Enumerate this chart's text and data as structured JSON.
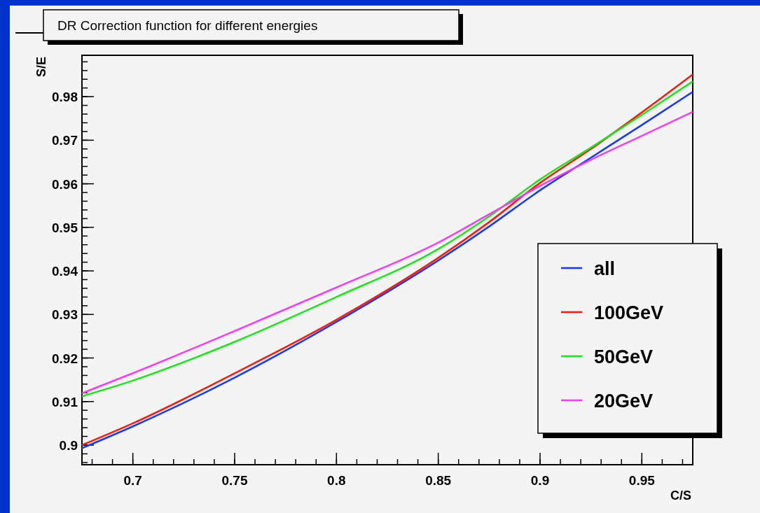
{
  "chart_data": {
    "type": "line",
    "title": "DR Correction function for different energies",
    "xlabel": "C/S",
    "ylabel": "S/E",
    "x": [
      0.675,
      0.7,
      0.75,
      0.8,
      0.85,
      0.875,
      0.9,
      0.925,
      0.95,
      0.975
    ],
    "series": [
      {
        "name": "all",
        "color": "#1a3cf0",
        "values": [
          0.8993,
          0.9043,
          0.9155,
          0.9283,
          0.9424,
          0.9502,
          0.9585,
          0.966,
          0.9735,
          0.9811
        ]
      },
      {
        "name": "100GeV",
        "color": "#f02010",
        "values": [
          0.9,
          0.905,
          0.9165,
          0.9288,
          0.943,
          0.9512,
          0.9602,
          0.968,
          0.9764,
          0.9851
        ]
      },
      {
        "name": "50GeV",
        "color": "#20e020",
        "values": [
          0.9112,
          0.9148,
          0.9237,
          0.934,
          0.945,
          0.9525,
          0.961,
          0.9683,
          0.9758,
          0.9835
        ]
      },
      {
        "name": "20GeV",
        "color": "#f040f0",
        "values": [
          0.9119,
          0.9165,
          0.9262,
          0.9362,
          0.9465,
          0.953,
          0.9595,
          0.9655,
          0.971,
          0.9765
        ]
      }
    ],
    "xlim": [
      0.675,
      0.975
    ],
    "xticks": [
      0.7,
      0.75,
      0.8,
      0.85,
      0.9,
      0.95
    ],
    "ylim": [
      0.8955,
      0.9895
    ],
    "yticks": [
      0.9,
      0.91,
      0.92,
      0.93,
      0.94,
      0.95,
      0.96,
      0.97,
      0.98
    ],
    "legend": "bottom right",
    "grid": false,
    "line_style": "solid"
  }
}
